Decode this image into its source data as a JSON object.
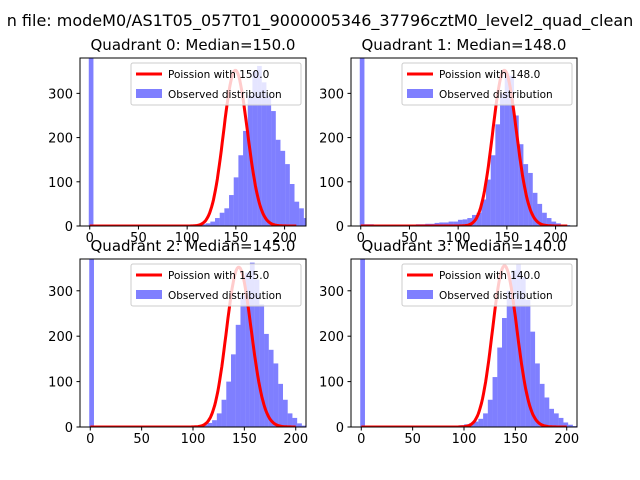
{
  "figure": {
    "suptitle": "n file: modeM0/AS1T05_057T01_9000005346_37796cztM0_level2_quad_clean"
  },
  "chart_data": [
    {
      "type": "bar",
      "title": "Quadrant 0: Median=150.0",
      "xlabel": "",
      "ylabel": "",
      "xlim": [
        -10,
        222
      ],
      "ylim": [
        0,
        380
      ],
      "xticks": [
        0,
        50,
        100,
        150,
        200
      ],
      "yticks": [
        0,
        100,
        200,
        300
      ],
      "grid": false,
      "legend_placement": "top-right",
      "legend": [
        "Poission with 150.0",
        "Observed distribution"
      ],
      "poisson_mean": 150.0,
      "poisson_peak": 352,
      "bin_width": 4.8,
      "bin_start": -1,
      "bin_heights": [
        380,
        0,
        0,
        0,
        0,
        0,
        0,
        0,
        0,
        0,
        0,
        0,
        0,
        0,
        0,
        0,
        0,
        0,
        0,
        0,
        0,
        1,
        2,
        3,
        4,
        6,
        10,
        18,
        30,
        40,
        70,
        110,
        160,
        215,
        295,
        350,
        362,
        325,
        295,
        260,
        195,
        170,
        140,
        95,
        55,
        40,
        18,
        8,
        5,
        2,
        1,
        0
      ],
      "series": [
        {
          "name": "Poission with 150.0",
          "kind": "line",
          "color": "#ff0000"
        },
        {
          "name": "Observed distribution",
          "kind": "histogram",
          "color": "#7f7fff"
        }
      ]
    },
    {
      "type": "bar",
      "title": "Quadrant 1: Median=148.0",
      "xlabel": "",
      "ylabel": "",
      "xlim": [
        -10,
        222
      ],
      "ylim": [
        0,
        380
      ],
      "xticks": [
        0,
        50,
        100,
        150,
        200
      ],
      "yticks": [
        0,
        100,
        200,
        300
      ],
      "grid": false,
      "legend_placement": "top-right",
      "legend": [
        "Poission with 148.0",
        "Observed distribution"
      ],
      "poisson_mean": 148.0,
      "poisson_peak": 352,
      "bin_width": 4.8,
      "bin_start": -1,
      "bin_heights": [
        380,
        4,
        4,
        3,
        3,
        2,
        2,
        2,
        3,
        3,
        3,
        3,
        4,
        4,
        5,
        5,
        7,
        8,
        8,
        10,
        10,
        14,
        15,
        18,
        25,
        30,
        60,
        105,
        160,
        230,
        300,
        345,
        340,
        250,
        185,
        140,
        120,
        75,
        50,
        30,
        18,
        10,
        6,
        3,
        2,
        1,
        0
      ],
      "series": [
        {
          "name": "Poission with 148.0",
          "kind": "line",
          "color": "#ff0000"
        },
        {
          "name": "Observed distribution",
          "kind": "histogram",
          "color": "#7f7fff"
        }
      ]
    },
    {
      "type": "bar",
      "title": "Quadrant 2: Median=145.0",
      "xlabel": "",
      "ylabel": "",
      "xlim": [
        -10,
        210
      ],
      "ylim": [
        0,
        370
      ],
      "xticks": [
        0,
        50,
        100,
        150,
        200
      ],
      "yticks": [
        0,
        100,
        200,
        300
      ],
      "grid": false,
      "legend_placement": "top-right",
      "legend": [
        "Poission with 145.0",
        "Observed distribution"
      ],
      "poisson_mean": 145.0,
      "poisson_peak": 352,
      "bin_width": 4.6,
      "bin_start": -1,
      "bin_heights": [
        370,
        0,
        0,
        0,
        0,
        0,
        0,
        0,
        0,
        0,
        0,
        0,
        0,
        0,
        0,
        0,
        0,
        0,
        0,
        0,
        0,
        1,
        2,
        3,
        5,
        9,
        15,
        30,
        60,
        100,
        160,
        225,
        290,
        340,
        362,
        325,
        270,
        205,
        170,
        140,
        95,
        60,
        30,
        20,
        8,
        3,
        1
      ],
      "series": [
        {
          "name": "Poission with 145.0",
          "kind": "line",
          "color": "#ff0000"
        },
        {
          "name": "Observed distribution",
          "kind": "histogram",
          "color": "#7f7fff"
        }
      ]
    },
    {
      "type": "bar",
      "title": "Quadrant 3: Median=140.0",
      "xlabel": "",
      "ylabel": "",
      "xlim": [
        -10,
        210
      ],
      "ylim": [
        0,
        370
      ],
      "xticks": [
        0,
        50,
        100,
        150,
        200
      ],
      "yticks": [
        0,
        100,
        200,
        300
      ],
      "grid": false,
      "legend_placement": "top-right",
      "legend": [
        "Poission with 140.0",
        "Observed distribution"
      ],
      "poisson_mean": 140.0,
      "poisson_peak": 355,
      "bin_width": 4.6,
      "bin_start": -1,
      "bin_heights": [
        370,
        0,
        0,
        0,
        0,
        0,
        0,
        0,
        0,
        0,
        0,
        0,
        0,
        0,
        0,
        0,
        0,
        0,
        1,
        2,
        3,
        4,
        6,
        8,
        12,
        18,
        30,
        60,
        110,
        175,
        240,
        300,
        345,
        360,
        330,
        280,
        210,
        140,
        95,
        65,
        40,
        30,
        20,
        10,
        5,
        2,
        1
      ],
      "series": [
        {
          "name": "Poission with 140.0",
          "kind": "line",
          "color": "#ff0000"
        },
        {
          "name": "Observed distribution",
          "kind": "histogram",
          "color": "#7f7fff"
        }
      ]
    }
  ]
}
